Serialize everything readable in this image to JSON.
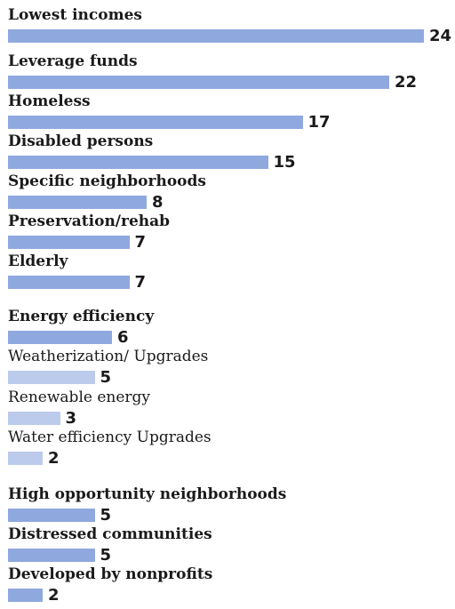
{
  "chart_data": {
    "type": "bar",
    "orientation": "horizontal",
    "categories": [
      "Lowest incomes",
      "Leverage funds",
      "Homeless",
      "Disabled persons",
      "Specific neighborhoods",
      "Preservation/rehab",
      "Elderly",
      "Energy efficiency",
      "Weatherization/ Upgrades",
      "Renewable energy",
      "Water efficiency Upgrades",
      "High opportunity neighborhoods",
      "Distressed communities",
      "Developed by nonprofits"
    ],
    "values": [
      24,
      22,
      17,
      15,
      8,
      7,
      7,
      6,
      5,
      3,
      2,
      5,
      5,
      2
    ],
    "value_labels": [
      "24",
      "22",
      "17",
      "15",
      "8",
      "7",
      "7",
      "6",
      "5",
      "3",
      "2",
      "5",
      "5",
      "2"
    ],
    "label_bold": [
      true,
      true,
      true,
      true,
      true,
      true,
      true,
      true,
      false,
      false,
      false,
      true,
      true,
      true
    ],
    "bar_colors": [
      "#8fa8de",
      "#8fa8de",
      "#8fa8de",
      "#8fa8de",
      "#8fa8de",
      "#8fa8de",
      "#8fa8de",
      "#8fa8de",
      "#bccbec",
      "#bccbec",
      "#bccbec",
      "#8fa8de",
      "#8fa8de",
      "#8fa8de"
    ],
    "title": "",
    "xlabel": "",
    "ylabel": "",
    "grid": false,
    "legend": false
  }
}
